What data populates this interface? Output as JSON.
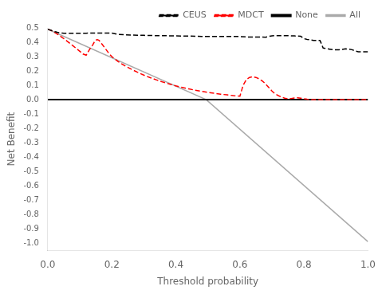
{
  "chart_data": {
    "type": "line",
    "xlabel": "Threshold probability",
    "ylabel": "Net Benefit",
    "xlim": [
      0.0,
      1.0
    ],
    "ylim": [
      -1.05,
      0.5
    ],
    "xticks": [
      {
        "value": 0.0,
        "label": "0.0"
      },
      0.2,
      0.4,
      0.6,
      0.8,
      {
        "value": 1.0,
        "label": "1.0"
      }
    ],
    "yticks": [
      {
        "value": -1.0,
        "label": "-1.0"
      },
      -0.9,
      -0.8,
      -0.7,
      -0.6,
      -0.5,
      -0.4,
      -0.3,
      -0.2,
      -0.1,
      {
        "value": 0.0,
        "label": "0.0"
      },
      0.1,
      0.2,
      0.3,
      0.4,
      0.5
    ],
    "grid": false,
    "legend": "upper right",
    "series": [
      {
        "name": "CEUS",
        "color": "black",
        "line_style": "dashed",
        "x": [
          0.0,
          0.005,
          0.01,
          0.015,
          0.02,
          0.025,
          0.03,
          0.035,
          0.04,
          0.045,
          0.05,
          0.06,
          0.07,
          0.08,
          0.09,
          0.1,
          0.11,
          0.12,
          0.13,
          0.14,
          0.15,
          0.16,
          0.17,
          0.18,
          0.19,
          0.2,
          0.22,
          0.24,
          0.26,
          0.28,
          0.3,
          0.32,
          0.34,
          0.36,
          0.38,
          0.4,
          0.42,
          0.44,
          0.46,
          0.48,
          0.49,
          0.5,
          0.51,
          0.52,
          0.54,
          0.56,
          0.58,
          0.6,
          0.62,
          0.64,
          0.66,
          0.68,
          0.7,
          0.71,
          0.72,
          0.73,
          0.74,
          0.75,
          0.76,
          0.77,
          0.78,
          0.79,
          0.8,
          0.81,
          0.82,
          0.83,
          0.84,
          0.85,
          0.86,
          0.87,
          0.88,
          0.89,
          0.9,
          0.91,
          0.92,
          0.93,
          0.94,
          0.95,
          0.96,
          0.97,
          0.98,
          0.99,
          1.0
        ],
        "values": [
          0.49,
          0.487,
          0.483,
          0.479,
          0.475,
          0.472,
          0.469,
          0.467,
          0.465,
          0.464,
          0.463,
          0.462,
          0.462,
          0.462,
          0.463,
          0.463,
          0.463,
          0.463,
          0.464,
          0.464,
          0.464,
          0.464,
          0.464,
          0.464,
          0.464,
          0.464,
          0.455,
          0.452,
          0.45,
          0.449,
          0.448,
          0.447,
          0.446,
          0.446,
          0.445,
          0.444,
          0.443,
          0.443,
          0.442,
          0.441,
          0.441,
          0.441,
          0.441,
          0.441,
          0.44,
          0.44,
          0.44,
          0.44,
          0.437,
          0.436,
          0.436,
          0.435,
          0.445,
          0.446,
          0.446,
          0.446,
          0.446,
          0.446,
          0.445,
          0.444,
          0.443,
          0.442,
          0.425,
          0.42,
          0.416,
          0.413,
          0.413,
          0.413,
          0.36,
          0.356,
          0.352,
          0.348,
          0.348,
          0.348,
          0.35,
          0.354,
          0.352,
          0.348,
          0.34,
          0.333,
          0.333,
          0.333,
          0.333
        ]
      },
      {
        "name": "MDCT",
        "color": "red",
        "line_style": "dashed",
        "x": [
          0.0,
          0.005,
          0.01,
          0.015,
          0.02,
          0.025,
          0.03,
          0.035,
          0.04,
          0.045,
          0.05,
          0.06,
          0.07,
          0.08,
          0.09,
          0.1,
          0.11,
          0.12,
          0.13,
          0.14,
          0.145,
          0.15,
          0.155,
          0.16,
          0.165,
          0.17,
          0.18,
          0.19,
          0.2,
          0.22,
          0.24,
          0.26,
          0.28,
          0.3,
          0.32,
          0.34,
          0.36,
          0.38,
          0.4,
          0.42,
          0.44,
          0.46,
          0.48,
          0.5,
          0.52,
          0.54,
          0.56,
          0.58,
          0.6,
          0.61,
          0.62,
          0.63,
          0.64,
          0.65,
          0.66,
          0.67,
          0.68,
          0.69,
          0.7,
          0.71,
          0.72,
          0.73,
          0.74,
          0.75,
          0.76,
          0.77,
          0.78,
          0.79,
          0.8,
          0.81,
          0.82,
          0.83,
          0.84,
          0.85,
          0.86,
          0.87,
          0.88,
          0.89,
          0.9,
          0.95,
          1.0
        ],
        "values": [
          0.49,
          0.487,
          0.483,
          0.477,
          0.47,
          0.463,
          0.456,
          0.449,
          0.441,
          0.433,
          0.425,
          0.408,
          0.391,
          0.373,
          0.355,
          0.337,
          0.318,
          0.31,
          0.348,
          0.38,
          0.4,
          0.415,
          0.418,
          0.413,
          0.4,
          0.385,
          0.355,
          0.325,
          0.3,
          0.265,
          0.237,
          0.213,
          0.191,
          0.171,
          0.153,
          0.137,
          0.122,
          0.109,
          0.096,
          0.085,
          0.075,
          0.066,
          0.058,
          0.051,
          0.044,
          0.038,
          0.033,
          0.028,
          0.024,
          0.1,
          0.14,
          0.155,
          0.16,
          0.155,
          0.145,
          0.13,
          0.11,
          0.085,
          0.06,
          0.04,
          0.028,
          0.018,
          0.01,
          0.006,
          0.008,
          0.012,
          0.013,
          0.01,
          0.006,
          0.003,
          0.001,
          0.0,
          0.0,
          0.0,
          0.0,
          0.0,
          0.0,
          0.0,
          0.0,
          0.0,
          0.0
        ]
      },
      {
        "name": "None",
        "color": "black",
        "line_style": "solid",
        "x": [
          0.0,
          1.0
        ],
        "values": [
          0.0,
          0.0
        ]
      },
      {
        "name": "All",
        "color": "#aaaaaa",
        "line_style": "solid",
        "x": [
          0.0,
          0.495,
          1.0
        ],
        "values": [
          0.49,
          0.0,
          -0.99
        ]
      }
    ]
  }
}
